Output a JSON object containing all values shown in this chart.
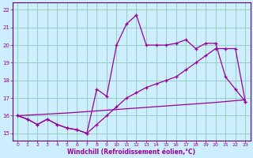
{
  "xlabel": "Windchill (Refroidissement éolien,°C)",
  "bg_color": "#cceeff",
  "grid_color": "#99ccbb",
  "line_color": "#990099",
  "spine_color": "#660066",
  "xlim_min": -0.5,
  "xlim_max": 23.5,
  "ylim_min": 14.6,
  "ylim_max": 22.4,
  "yticks": [
    15,
    16,
    17,
    18,
    19,
    20,
    21,
    22
  ],
  "xticks": [
    0,
    1,
    2,
    3,
    4,
    5,
    6,
    7,
    8,
    9,
    10,
    11,
    12,
    13,
    14,
    15,
    16,
    17,
    18,
    19,
    20,
    21,
    22,
    23
  ],
  "line1_x": [
    0,
    1,
    2,
    3,
    4,
    5,
    6,
    7,
    8,
    9,
    10,
    11,
    12,
    13,
    14,
    15,
    16,
    17,
    18,
    19,
    20,
    21,
    22,
    23
  ],
  "line1_y": [
    16.0,
    15.8,
    15.5,
    15.8,
    15.5,
    15.3,
    15.2,
    15.0,
    17.5,
    17.1,
    20.0,
    21.2,
    21.7,
    20.0,
    20.0,
    20.0,
    20.1,
    20.3,
    19.8,
    20.1,
    20.1,
    18.2,
    17.5,
    16.8
  ],
  "line2_x": [
    0,
    1,
    2,
    3,
    4,
    5,
    6,
    7,
    8,
    9,
    10,
    11,
    12,
    13,
    14,
    15,
    16,
    17,
    18,
    19,
    20,
    21,
    22,
    23
  ],
  "line2_y": [
    16.0,
    15.8,
    15.5,
    15.8,
    15.5,
    15.3,
    15.2,
    15.0,
    15.5,
    16.0,
    16.5,
    17.0,
    17.3,
    17.6,
    17.8,
    18.0,
    18.2,
    18.6,
    19.0,
    19.4,
    19.8,
    19.8,
    19.8,
    16.8
  ],
  "line3_x": [
    0,
    5,
    10,
    15,
    20,
    23
  ],
  "line3_y": [
    16.0,
    16.15,
    16.35,
    16.55,
    16.75,
    16.9
  ]
}
